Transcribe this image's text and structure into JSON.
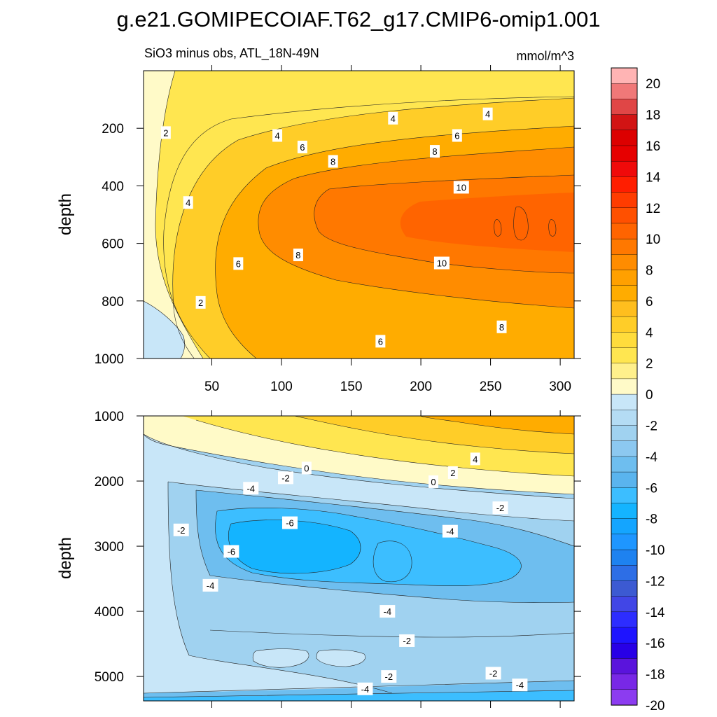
{
  "title": "g.e21.GOMIPECOIAF.T62_g17.CMIP6-omip1.001",
  "subtitle_left": "SiO3 minus obs, ATL_18N-49N",
  "subtitle_right": "mmol/m^3",
  "chart_data": [
    {
      "type": "contour",
      "panel": "upper",
      "ylabel": "depth",
      "xlabel": "",
      "xlim": [
        1,
        310
      ],
      "ylim": [
        1000,
        0
      ],
      "x_ticks": [
        50,
        100,
        150,
        200,
        250,
        300
      ],
      "x_tick_labels": [
        "50",
        "100",
        "150",
        "200",
        "250",
        "300"
      ],
      "y_ticks": [
        200,
        400,
        600,
        800,
        1000
      ],
      "y_tick_labels": [
        "200",
        "400",
        "600",
        "800",
        "1000"
      ],
      "field_summary": "positive anomaly increasing from ~0 near x=0 to a maximum of ~10-12 around x=180-310 at 500-600 m depth",
      "contour_labels": [
        {
          "value": "2",
          "x": 17,
          "y": 215
        },
        {
          "value": "4",
          "x": 180,
          "y": 165
        },
        {
          "value": "4",
          "x": 248,
          "y": 150
        },
        {
          "value": "4",
          "x": 97,
          "y": 225
        },
        {
          "value": "6",
          "x": 115,
          "y": 265
        },
        {
          "value": "6",
          "x": 226,
          "y": 225
        },
        {
          "value": "8",
          "x": 137,
          "y": 315
        },
        {
          "value": "8",
          "x": 210,
          "y": 280
        },
        {
          "value": "10",
          "x": 229,
          "y": 405
        },
        {
          "value": "4",
          "x": 33,
          "y": 458
        },
        {
          "value": "8",
          "x": 112,
          "y": 640
        },
        {
          "value": "10",
          "x": 215,
          "y": 668
        },
        {
          "value": "6",
          "x": 69,
          "y": 670
        },
        {
          "value": "2",
          "x": 42,
          "y": 805
        },
        {
          "value": "8",
          "x": 258,
          "y": 890
        },
        {
          "value": "6",
          "x": 171,
          "y": 940
        }
      ]
    },
    {
      "type": "contour",
      "panel": "lower",
      "ylabel": "depth",
      "xlabel": "",
      "xlim": [
        1,
        310
      ],
      "ylim": [
        5375,
        1000
      ],
      "x_ticks": [
        50,
        100,
        150,
        200,
        250,
        300
      ],
      "x_tick_labels": [
        "",
        "",
        "",
        "",
        "",
        ""
      ],
      "y_ticks": [
        1000,
        2000,
        3000,
        4000,
        5000
      ],
      "y_tick_labels": [
        "1000",
        "2000",
        "3000",
        "4000",
        "5000"
      ],
      "field_summary": "positive anomaly above ~1800-2200 m, negative below with minimum ~-6 around 2600-3500 m, weak negative near 4500-5000 m and -4 near the bottom",
      "contour_labels": [
        {
          "value": "0",
          "x": 118,
          "y": 1800
        },
        {
          "value": "-2",
          "x": 103,
          "y": 1950
        },
        {
          "value": "2",
          "x": 223,
          "y": 1870
        },
        {
          "value": "4",
          "x": 239,
          "y": 1660
        },
        {
          "value": "0",
          "x": 209,
          "y": 2010
        },
        {
          "value": "-4",
          "x": 78,
          "y": 2110
        },
        {
          "value": "-6",
          "x": 106,
          "y": 2640
        },
        {
          "value": "-2",
          "x": 28,
          "y": 2750
        },
        {
          "value": "-2",
          "x": 257,
          "y": 2410
        },
        {
          "value": "-4",
          "x": 221,
          "y": 2770
        },
        {
          "value": "-6",
          "x": 64,
          "y": 3080
        },
        {
          "value": "-4",
          "x": 49,
          "y": 3600
        },
        {
          "value": "-4",
          "x": 176,
          "y": 4000
        },
        {
          "value": "-2",
          "x": 190,
          "y": 4450
        },
        {
          "value": "-2",
          "x": 177,
          "y": 5000
        },
        {
          "value": "-2",
          "x": 252,
          "y": 4950
        },
        {
          "value": "-4",
          "x": 160,
          "y": 5190
        },
        {
          "value": "-4",
          "x": 271,
          "y": 5130
        }
      ]
    }
  ],
  "colorbar": {
    "levels": [
      "20",
      "18",
      "16",
      "14",
      "12",
      "10",
      "8",
      "6",
      "4",
      "2",
      "0",
      "-2",
      "-4",
      "-6",
      "-8",
      "-10",
      "-12",
      "-14",
      "-16",
      "-18",
      "-20"
    ],
    "colors": [
      "#ffb4b4",
      "#f07878",
      "#e04646",
      "#d21414",
      "#dc0000",
      "#e60000",
      "#f00a0a",
      "#ff1e00",
      "#ff3c00",
      "#ff5000",
      "#ff6400",
      "#ff7800",
      "#ff8c00",
      "#ffa000",
      "#ffac00",
      "#ffbe1e",
      "#ffcd28",
      "#ffdc3c",
      "#ffe650",
      "#fff08c",
      "#fffac8",
      "#c8e6f8",
      "#b4dcf4",
      "#a0d2f0",
      "#8cc8f0",
      "#6ebeef",
      "#5ab4ee",
      "#3cbeff",
      "#14b4ff",
      "#14a5ff",
      "#1e96ff",
      "#1e82f0",
      "#2d6ee6",
      "#3c5ad2",
      "#4146e6",
      "#2d2dff",
      "#1e14ff",
      "#2800e6",
      "#5a14dc",
      "#7828e6",
      "#8c3cf0"
    ]
  },
  "field_colors": {
    "neg2": "#c8e6f8",
    "neg4": "#a0d2f0",
    "neg6": "#6ebeef",
    "neg8": "#3cbeff",
    "neg10": "#14b4ff",
    "pos2": "#fffac8",
    "pos4": "#ffe650",
    "pos6": "#ffcd28",
    "pos8": "#ffac00",
    "pos10": "#ff8c00",
    "pos12": "#ff7800",
    "pos14": "#ff6400"
  }
}
